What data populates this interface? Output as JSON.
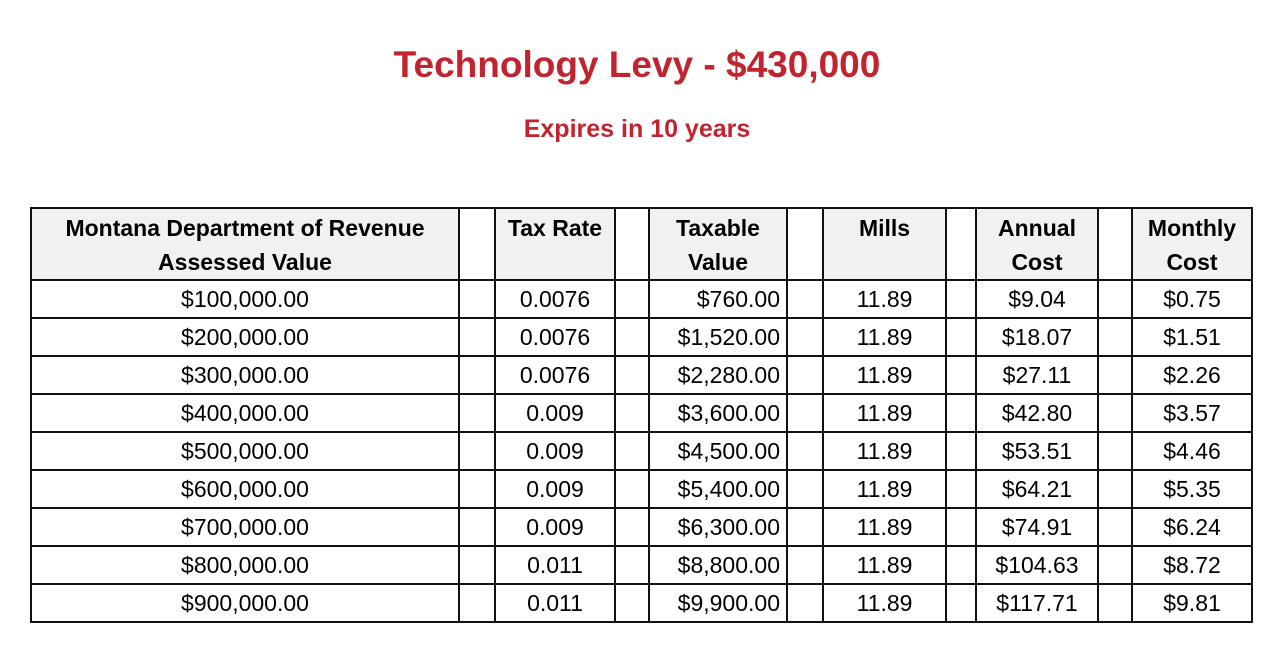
{
  "title": "Technology Levy - $430,000",
  "subtitle": "Expires in 10 years",
  "table": {
    "headers": [
      "Montana Department of Revenue Assessed Value",
      "Tax Rate",
      "Taxable Value",
      "Mills",
      "Annual Cost",
      "Monthly Cost"
    ],
    "header_lines": [
      [
        "Montana Department of Revenue",
        "Assessed Value"
      ],
      [
        "Tax Rate",
        ""
      ],
      [
        "Taxable",
        "Value"
      ],
      [
        "Mills",
        ""
      ],
      [
        "Annual",
        "Cost"
      ],
      [
        "Monthly",
        "Cost"
      ]
    ],
    "rows": [
      [
        "$100,000.00",
        "0.0076",
        "$760.00",
        "11.89",
        "$9.04",
        "$0.75"
      ],
      [
        "$200,000.00",
        "0.0076",
        "$1,520.00",
        "11.89",
        "$18.07",
        "$1.51"
      ],
      [
        "$300,000.00",
        "0.0076",
        "$2,280.00",
        "11.89",
        "$27.11",
        "$2.26"
      ],
      [
        "$400,000.00",
        "0.009",
        "$3,600.00",
        "11.89",
        "$42.80",
        "$3.57"
      ],
      [
        "$500,000.00",
        "0.009",
        "$4,500.00",
        "11.89",
        "$53.51",
        "$4.46"
      ],
      [
        "$600,000.00",
        "0.009",
        "$5,400.00",
        "11.89",
        "$64.21",
        "$5.35"
      ],
      [
        "$700,000.00",
        "0.009",
        "$6,300.00",
        "11.89",
        "$74.91",
        "$6.24"
      ],
      [
        "$800,000.00",
        "0.011",
        "$8,800.00",
        "11.89",
        "$104.63",
        "$8.72"
      ],
      [
        "$900,000.00",
        "0.011",
        "$9,900.00",
        "11.89",
        "$117.71",
        "$9.81"
      ]
    ]
  },
  "colors": {
    "title": "#c1232f",
    "header_bg": "#f1f1f1"
  }
}
